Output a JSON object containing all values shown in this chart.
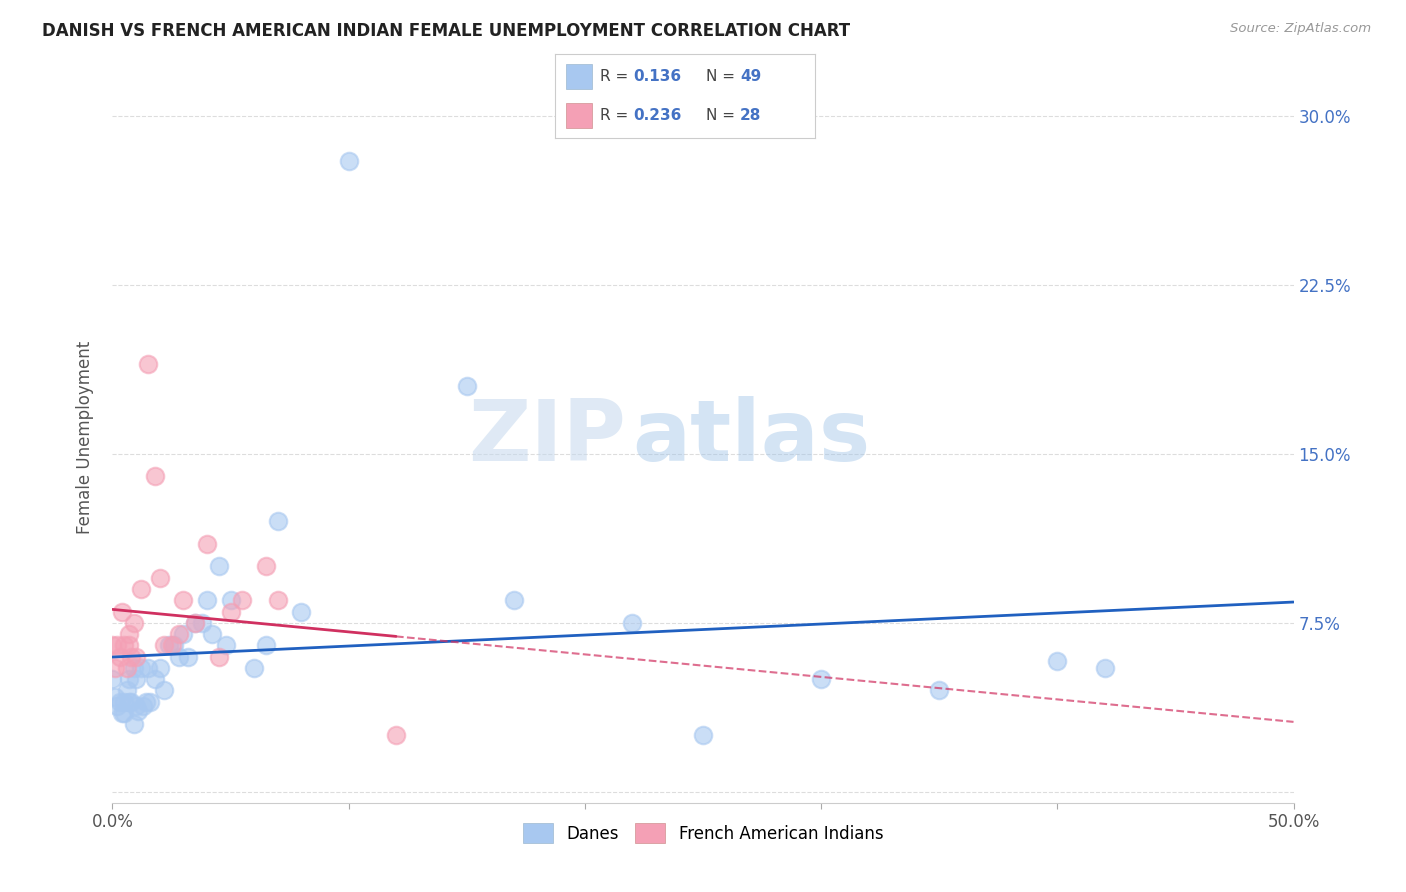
{
  "title": "DANISH VS FRENCH AMERICAN INDIAN FEMALE UNEMPLOYMENT CORRELATION CHART",
  "source": "Source: ZipAtlas.com",
  "ylabel": "Female Unemployment",
  "xlim": [
    0.0,
    0.5
  ],
  "ylim": [
    -0.005,
    0.32
  ],
  "xticks": [
    0.0,
    0.1,
    0.2,
    0.3,
    0.4,
    0.5
  ],
  "yticks": [
    0.0,
    0.075,
    0.15,
    0.225,
    0.3
  ],
  "ytick_labels_right": [
    "",
    "7.5%",
    "15.0%",
    "22.5%",
    "30.0%"
  ],
  "blue_color": "#A8C8F0",
  "pink_color": "#F4A0B5",
  "line_blue": "#2060C0",
  "line_pink": "#D03060",
  "danes_x": [
    0.0,
    0.001,
    0.002,
    0.003,
    0.004,
    0.005,
    0.005,
    0.006,
    0.007,
    0.007,
    0.008,
    0.009,
    0.009,
    0.01,
    0.01,
    0.011,
    0.012,
    0.013,
    0.014,
    0.015,
    0.016,
    0.018,
    0.02,
    0.022,
    0.024,
    0.026,
    0.028,
    0.03,
    0.032,
    0.035,
    0.038,
    0.04,
    0.042,
    0.045,
    0.048,
    0.05,
    0.06,
    0.065,
    0.07,
    0.08,
    0.1,
    0.15,
    0.17,
    0.22,
    0.25,
    0.3,
    0.35,
    0.4,
    0.42
  ],
  "danes_y": [
    0.05,
    0.042,
    0.038,
    0.04,
    0.035,
    0.04,
    0.035,
    0.045,
    0.05,
    0.04,
    0.04,
    0.055,
    0.03,
    0.038,
    0.05,
    0.036,
    0.055,
    0.038,
    0.04,
    0.055,
    0.04,
    0.05,
    0.055,
    0.045,
    0.065,
    0.065,
    0.06,
    0.07,
    0.06,
    0.075,
    0.075,
    0.085,
    0.07,
    0.1,
    0.065,
    0.085,
    0.055,
    0.065,
    0.12,
    0.08,
    0.28,
    0.18,
    0.085,
    0.075,
    0.025,
    0.05,
    0.045,
    0.058,
    0.055
  ],
  "french_x": [
    0.0,
    0.001,
    0.002,
    0.003,
    0.004,
    0.005,
    0.006,
    0.007,
    0.007,
    0.008,
    0.009,
    0.01,
    0.012,
    0.015,
    0.018,
    0.02,
    0.022,
    0.025,
    0.028,
    0.03,
    0.035,
    0.04,
    0.045,
    0.05,
    0.055,
    0.065,
    0.07,
    0.12
  ],
  "french_y": [
    0.065,
    0.055,
    0.065,
    0.06,
    0.08,
    0.065,
    0.055,
    0.07,
    0.065,
    0.06,
    0.075,
    0.06,
    0.09,
    0.19,
    0.14,
    0.095,
    0.065,
    0.065,
    0.07,
    0.085,
    0.075,
    0.11,
    0.06,
    0.08,
    0.085,
    0.1,
    0.085,
    0.025
  ],
  "watermark_zip": "ZIP",
  "watermark_atlas": "atlas",
  "background_color": "#FFFFFF",
  "grid_color": "#DDDDDD"
}
